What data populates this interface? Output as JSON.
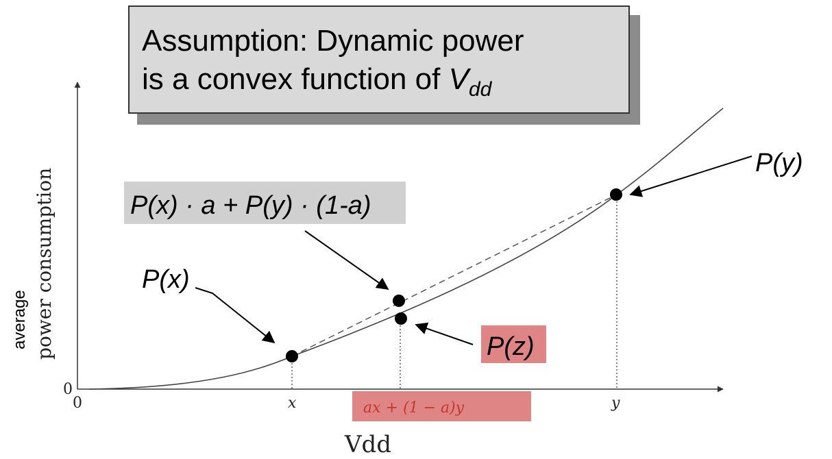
{
  "title": {
    "line1": "Assumption: Dynamic power",
    "line2": "is a convex function of ",
    "var_main": "V",
    "var_sub": "dd"
  },
  "axes": {
    "ylabel_top": "average",
    "ylabel": "power consumption",
    "xlabel": "Vdd",
    "origin_x": "0",
    "origin_y": "0"
  },
  "ticks": {
    "x": "x",
    "y": "y",
    "z": "ax + (1 − a)y"
  },
  "labels": {
    "px": "P(x)",
    "py": "P(y)",
    "pz": "P(z)",
    "chord": "P(x) · a + P(y) · (1-a)"
  },
  "colors": {
    "highlight_red": "#e08585",
    "highlight_gray": "#d0d0d0",
    "axis": "#333333"
  }
}
